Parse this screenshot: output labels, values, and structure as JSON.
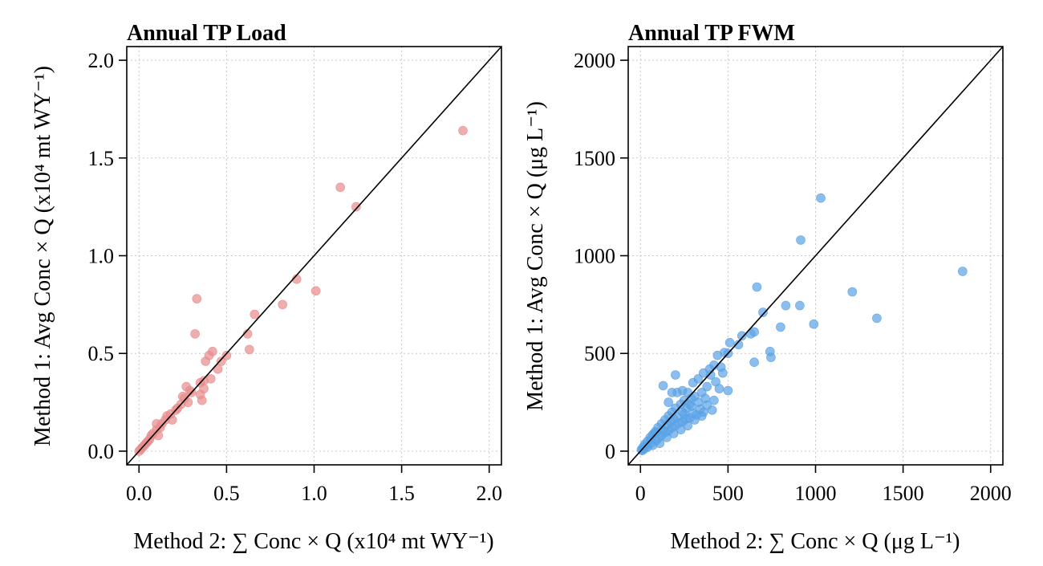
{
  "chart_data": [
    {
      "type": "scatter",
      "title": "Annual TP Load",
      "xlabel": "Method 2: ∑ Conc × Q (x10⁴ mt WY⁻¹)",
      "ylabel": "Method 1: Avg Conc × Q (x10⁴ mt WY⁻¹)",
      "xlim": [
        -0.07,
        2.07
      ],
      "ylim": [
        -0.07,
        2.07
      ],
      "xticks": [
        "0.0",
        "0.5",
        "1.0",
        "1.5",
        "2.0"
      ],
      "yticks": [
        "0.0",
        "0.5",
        "1.0",
        "1.5",
        "2.0"
      ],
      "tick_values": [
        0,
        0.5,
        1.0,
        1.5,
        2.0
      ],
      "grid": true,
      "identity_line": true,
      "point_color": "#e88c8c",
      "points": [
        [
          1.85,
          1.64
        ],
        [
          1.15,
          1.35
        ],
        [
          1.24,
          1.25
        ],
        [
          0.9,
          0.88
        ],
        [
          1.01,
          0.82
        ],
        [
          0.82,
          0.75
        ],
        [
          0.66,
          0.7
        ],
        [
          0.62,
          0.6
        ],
        [
          0.63,
          0.52
        ],
        [
          0.33,
          0.78
        ],
        [
          0.32,
          0.6
        ],
        [
          0.42,
          0.51
        ],
        [
          0.4,
          0.49
        ],
        [
          0.38,
          0.46
        ],
        [
          0.47,
          0.46
        ],
        [
          0.5,
          0.49
        ],
        [
          0.45,
          0.42
        ],
        [
          0.41,
          0.37
        ],
        [
          0.37,
          0.36
        ],
        [
          0.35,
          0.35
        ],
        [
          0.37,
          0.32
        ],
        [
          0.3,
          0.3
        ],
        [
          0.27,
          0.33
        ],
        [
          0.35,
          0.29
        ],
        [
          0.26,
          0.27
        ],
        [
          0.28,
          0.25
        ],
        [
          0.36,
          0.26
        ],
        [
          0.24,
          0.24
        ],
        [
          0.21,
          0.21
        ],
        [
          0.22,
          0.22
        ],
        [
          0.18,
          0.19
        ],
        [
          0.16,
          0.18
        ],
        [
          0.15,
          0.16
        ],
        [
          0.13,
          0.14
        ],
        [
          0.12,
          0.12
        ],
        [
          0.1,
          0.14
        ],
        [
          0.1,
          0.11
        ],
        [
          0.08,
          0.09
        ],
        [
          0.07,
          0.08
        ],
        [
          0.06,
          0.06
        ],
        [
          0.05,
          0.05
        ],
        [
          0.04,
          0.04
        ],
        [
          0.03,
          0.03
        ],
        [
          0.02,
          0.02
        ],
        [
          0.01,
          0.01
        ],
        [
          0.0,
          0.0
        ],
        [
          0.11,
          0.08
        ],
        [
          0.19,
          0.16
        ],
        [
          0.25,
          0.28
        ],
        [
          0.29,
          0.31
        ]
      ]
    },
    {
      "type": "scatter",
      "title": "Annual TP FWM",
      "xlabel": "Method 2: ∑ Conc × Q (μg L⁻¹)",
      "ylabel": "Method 1: Avg Conc × Q (μg L⁻¹)",
      "xlim": [
        -70,
        2070
      ],
      "ylim": [
        -70,
        2070
      ],
      "xticks": [
        "0",
        "500",
        "1000",
        "1500",
        "2000"
      ],
      "yticks": [
        "0",
        "500",
        "1000",
        "1500",
        "2000"
      ],
      "tick_values": [
        0,
        500,
        1000,
        1500,
        2000
      ],
      "grid": true,
      "identity_line": true,
      "point_color": "#5aa2e6",
      "points": [
        [
          1030,
          1295
        ],
        [
          915,
          1080
        ],
        [
          665,
          840
        ],
        [
          1840,
          920
        ],
        [
          1210,
          815
        ],
        [
          1350,
          680
        ],
        [
          990,
          650
        ],
        [
          830,
          745
        ],
        [
          910,
          745
        ],
        [
          800,
          635
        ],
        [
          700,
          710
        ],
        [
          740,
          510
        ],
        [
          745,
          480
        ],
        [
          650,
          455
        ],
        [
          630,
          600
        ],
        [
          650,
          610
        ],
        [
          580,
          590
        ],
        [
          560,
          545
        ],
        [
          510,
          555
        ],
        [
          480,
          505
        ],
        [
          440,
          490
        ],
        [
          500,
          500
        ],
        [
          460,
          430
        ],
        [
          420,
          440
        ],
        [
          395,
          420
        ],
        [
          400,
          390
        ],
        [
          360,
          400
        ],
        [
          330,
          370
        ],
        [
          300,
          350
        ],
        [
          470,
          400
        ],
        [
          500,
          310
        ],
        [
          450,
          320
        ],
        [
          200,
          390
        ],
        [
          130,
          335
        ],
        [
          210,
          300
        ],
        [
          180,
          300
        ],
        [
          160,
          250
        ],
        [
          240,
          310
        ],
        [
          270,
          300
        ],
        [
          290,
          270
        ],
        [
          250,
          260
        ],
        [
          230,
          240
        ],
        [
          200,
          220
        ],
        [
          180,
          200
        ],
        [
          160,
          180
        ],
        [
          140,
          160
        ],
        [
          120,
          140
        ],
        [
          100,
          120
        ],
        [
          85,
          100
        ],
        [
          70,
          85
        ],
        [
          55,
          70
        ],
        [
          40,
          50
        ],
        [
          25,
          35
        ],
        [
          15,
          20
        ],
        [
          5,
          8
        ],
        [
          120,
          80
        ],
        [
          160,
          105
        ],
        [
          200,
          130
        ],
        [
          240,
          150
        ],
        [
          280,
          170
        ],
        [
          320,
          185
        ],
        [
          360,
          200
        ],
        [
          410,
          210
        ],
        [
          100,
          65
        ],
        [
          60,
          40
        ],
        [
          80,
          90
        ],
        [
          130,
          110
        ],
        [
          170,
          150
        ],
        [
          210,
          175
        ],
        [
          250,
          190
        ],
        [
          290,
          230
        ],
        [
          330,
          250
        ],
        [
          370,
          270
        ],
        [
          110,
          40
        ],
        [
          150,
          70
        ],
        [
          190,
          90
        ],
        [
          230,
          110
        ],
        [
          270,
          130
        ],
        [
          310,
          160
        ],
        [
          350,
          180
        ],
        [
          40,
          20
        ],
        [
          70,
          30
        ],
        [
          90,
          55
        ],
        [
          140,
          95
        ],
        [
          180,
          120
        ],
        [
          220,
          145
        ],
        [
          260,
          165
        ],
        [
          300,
          195
        ],
        [
          340,
          215
        ],
        [
          380,
          235
        ],
        [
          420,
          260
        ],
        [
          60,
          60
        ],
        [
          90,
          95
        ],
        [
          150,
          135
        ],
        [
          190,
          165
        ],
        [
          30,
          25
        ],
        [
          20,
          10
        ],
        [
          10,
          3
        ],
        [
          260,
          220
        ],
        [
          310,
          280
        ],
        [
          350,
          300
        ],
        [
          380,
          330
        ],
        [
          430,
          355
        ],
        [
          240,
          200
        ],
        [
          280,
          240
        ]
      ]
    }
  ]
}
